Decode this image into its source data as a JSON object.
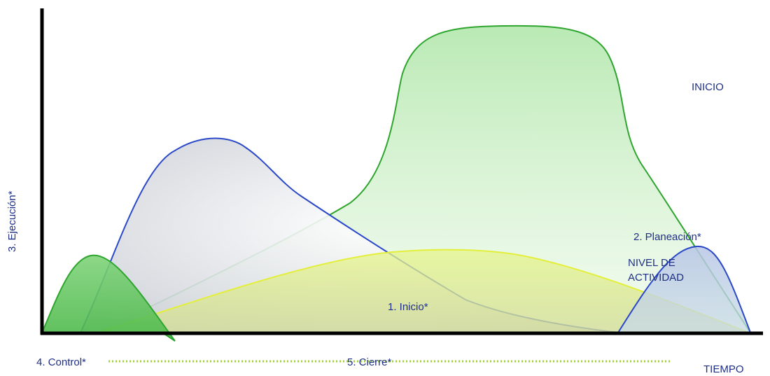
{
  "labels": {
    "inicio_title": "INICIO",
    "inicio_curve": "1.  Inicio*",
    "planeacion": "2.  Planeación*",
    "ejecucion": "3.  Ejecución*",
    "control": "4.  Control*",
    "cierre": "5.  Cierre*",
    "nivel_line1": "NIVEL DE",
    "nivel_line2": "ACTIVIDAD",
    "tiempo": "TIEMPO"
  },
  "colors": {
    "text": "#1f2f86",
    "axis": "#000000",
    "green_stroke": "#2ea52e",
    "blue_stroke": "#2a48c8",
    "yellow_stroke": "#e3ef3a",
    "dotted": "#9fd13a"
  }
}
